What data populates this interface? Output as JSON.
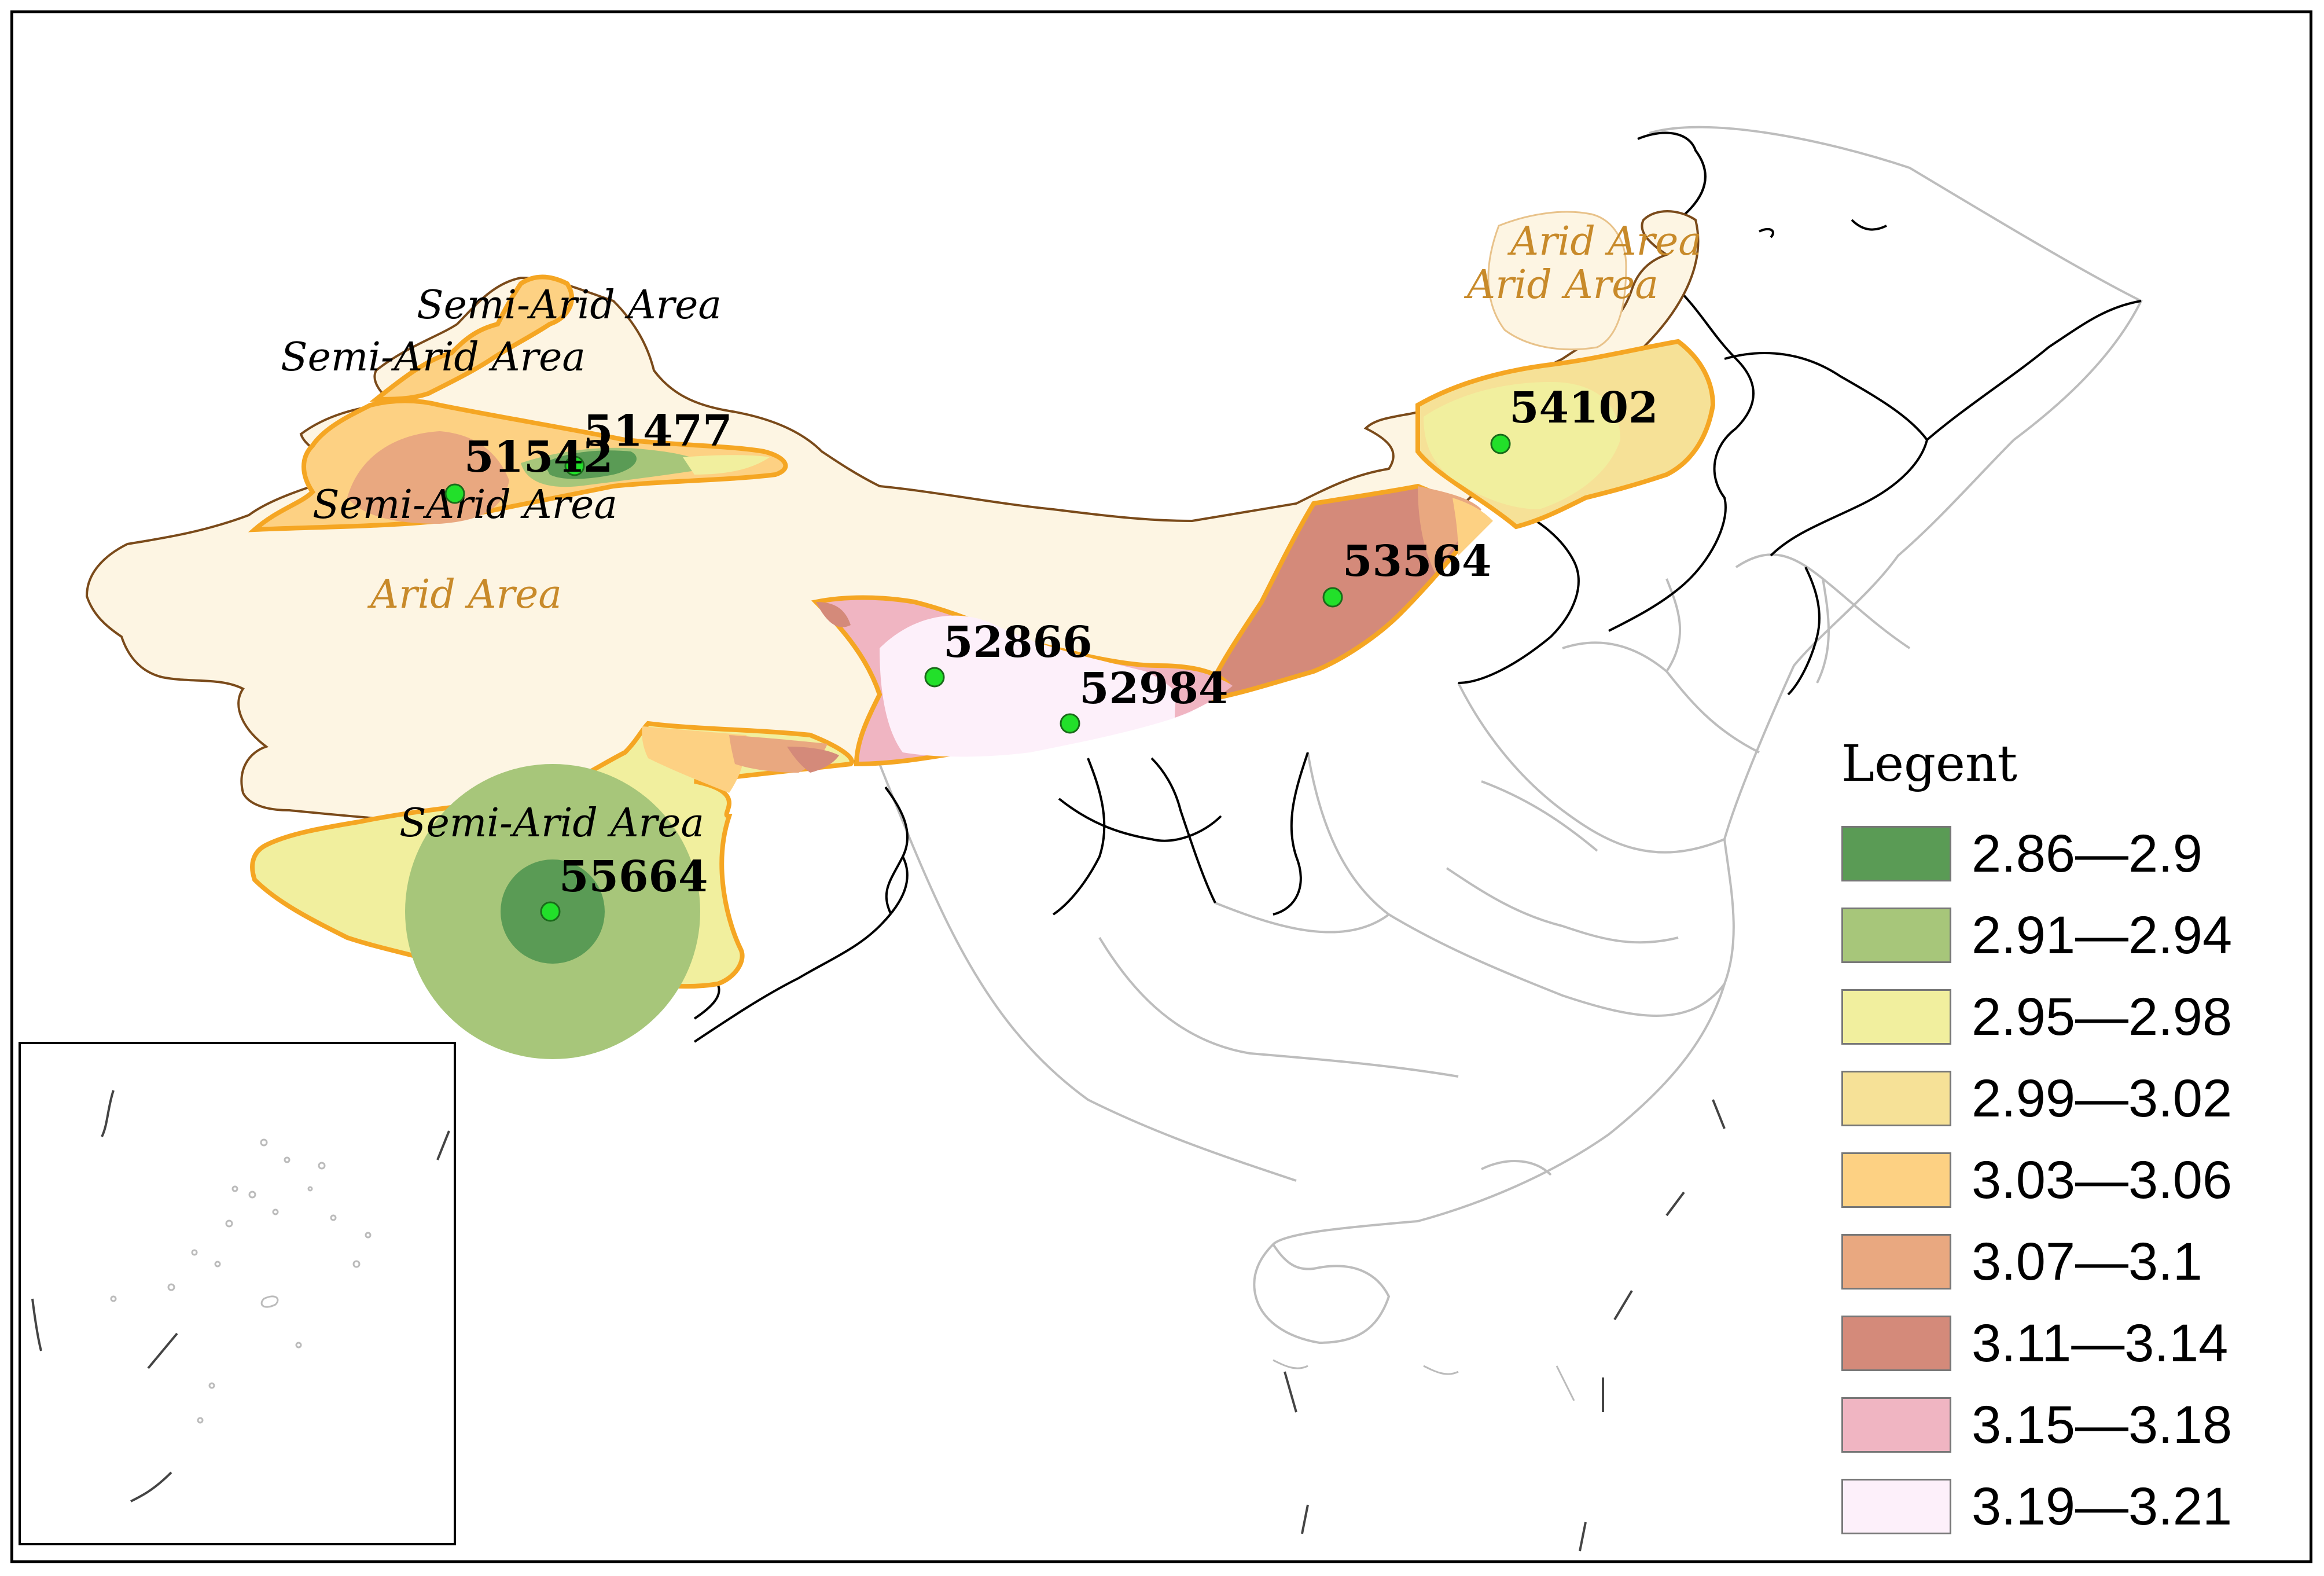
{
  "legend": {
    "title": "Legent",
    "items": [
      {
        "label": "2.86—2.9",
        "color": "#5a9b55"
      },
      {
        "label": "2.91—2.94",
        "color": "#a7c67a"
      },
      {
        "label": "2.95—2.98",
        "color": "#f1ef9e"
      },
      {
        "label": "2.99—3.02",
        "color": "#f6e197"
      },
      {
        "label": "3.03—3.06",
        "color": "#fdd183"
      },
      {
        "label": "3.07—3.1",
        "color": "#e9a880"
      },
      {
        "label": "3.11—3.14",
        "color": "#d48a7a"
      },
      {
        "label": "3.15—3.18",
        "color": "#f0b5c2"
      },
      {
        "label": "3.19—3.21",
        "color": "#fdf0fa"
      }
    ]
  },
  "stations": [
    {
      "id": "51542"
    },
    {
      "id": "51477"
    },
    {
      "id": "52866"
    },
    {
      "id": "52984"
    },
    {
      "id": "53564"
    },
    {
      "id": "54102"
    },
    {
      "id": "55664"
    }
  ],
  "zone_labels": {
    "semi_arid_1": "Semi-Arid Area",
    "semi_arid_2": "Semi-Arid Area",
    "semi_arid_3": "Semi-Arid Area",
    "semi_arid_4": "Semi-Arid Area",
    "arid_1": "Arid Area",
    "arid_2": "Arid Area",
    "arid_3": "Arid Area"
  },
  "colors": {
    "arid_fill": "#fdf5e3",
    "zone_border": "#f5a623",
    "station_marker": "#22e02a",
    "boundary_black": "#000000",
    "boundary_gray": "#bbbbbb"
  }
}
